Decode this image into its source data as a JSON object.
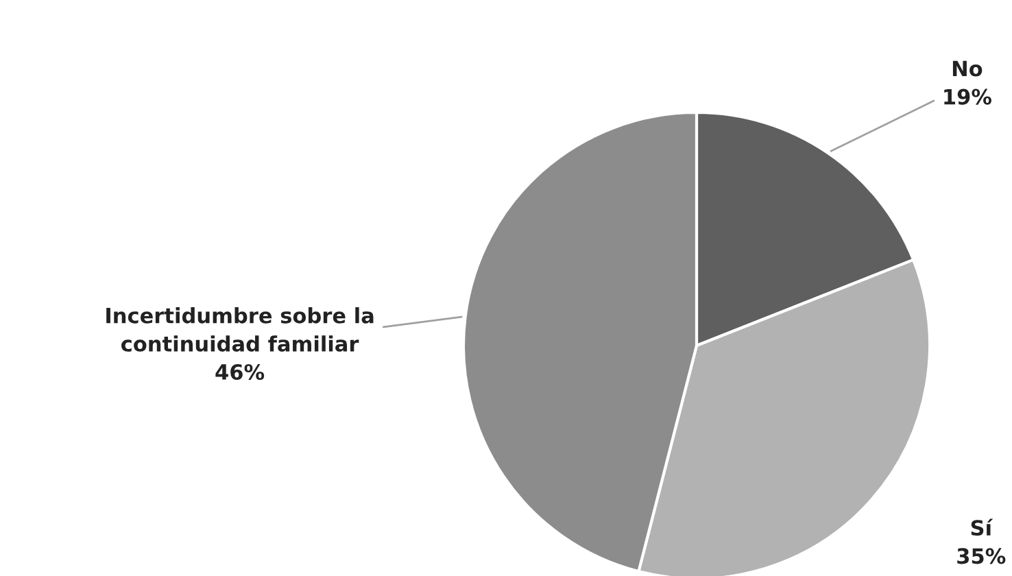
{
  "chart_data": {
    "type": "pie",
    "categories": [
      "No",
      "Sí",
      "Incertidumbre sobre la\ncontinuidad familiar"
    ],
    "values": [
      19,
      35,
      46
    ],
    "value_labels": [
      "19%",
      "35%",
      "46%"
    ],
    "colors": [
      "#5f5f5f",
      "#b2b2b2",
      "#8c8c8c"
    ],
    "legend": false
  }
}
